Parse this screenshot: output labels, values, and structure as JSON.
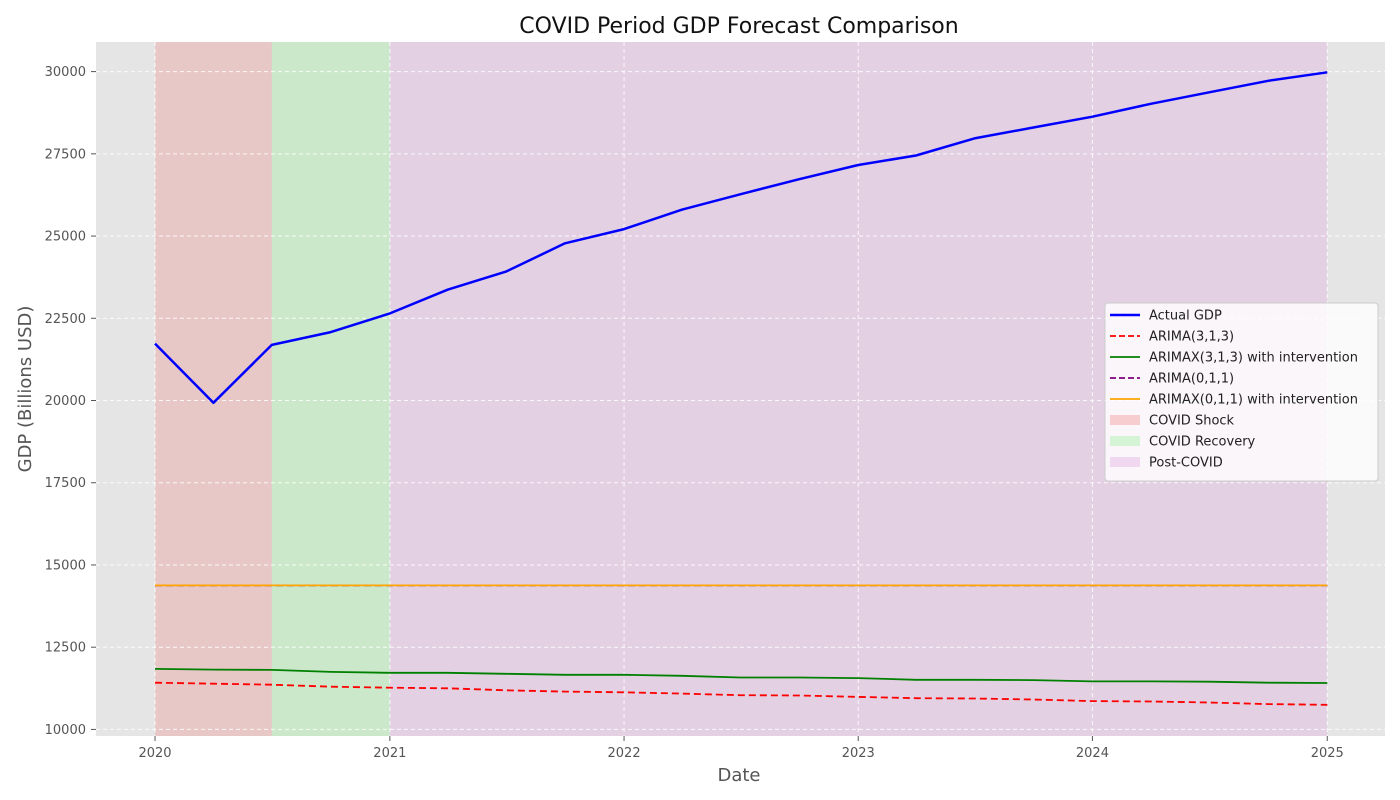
{
  "chart_data": {
    "type": "line",
    "title": "COVID Period GDP Forecast Comparison",
    "xlabel": "Date",
    "ylabel": "GDP (Billions USD)",
    "x": [
      "2020-01",
      "2020-04",
      "2020-07",
      "2020-10",
      "2021-01",
      "2021-04",
      "2021-07",
      "2021-10",
      "2022-01",
      "2022-04",
      "2022-07",
      "2022-10",
      "2023-01",
      "2023-04",
      "2023-07",
      "2023-10",
      "2024-01",
      "2024-04",
      "2024-07",
      "2024-10",
      "2025-01"
    ],
    "xlim": [
      "2019-10-01",
      "2025-04-01"
    ],
    "ylim": [
      9800,
      30900
    ],
    "x_ticks": [
      {
        "date": "2020-01-01",
        "label": "2020"
      },
      {
        "date": "2021-01-01",
        "label": "2021"
      },
      {
        "date": "2022-01-01",
        "label": "2022"
      },
      {
        "date": "2023-01-01",
        "label": "2023"
      },
      {
        "date": "2024-01-01",
        "label": "2024"
      },
      {
        "date": "2025-01-01",
        "label": "2025"
      }
    ],
    "y_ticks": [
      10000,
      12500,
      15000,
      17500,
      20000,
      22500,
      25000,
      27500,
      30000
    ],
    "grid": true,
    "legend_position": "center-right",
    "series": [
      {
        "name": "Actual GDP",
        "color": "#0000ff",
        "style": "solid",
        "values": [
          21730,
          19930,
          21690,
          22080,
          22650,
          23370,
          23920,
          24780,
          25210,
          25800,
          26270,
          26730,
          27160,
          27450,
          27970,
          28300,
          28630,
          29020,
          29370,
          29720,
          29980
        ]
      },
      {
        "name": "ARIMA(3,1,3)",
        "color": "#ff0000",
        "style": "dashed",
        "values": [
          11420,
          11390,
          11360,
          11300,
          11270,
          11250,
          11190,
          11150,
          11130,
          11090,
          11040,
          11030,
          10990,
          10950,
          10940,
          10910,
          10860,
          10850,
          10820,
          10770,
          10750
        ]
      },
      {
        "name": "ARIMAX(3,1,3) with intervention",
        "color": "#008000",
        "style": "solid",
        "values": [
          11840,
          11820,
          11810,
          11750,
          11720,
          11720,
          11690,
          11660,
          11660,
          11630,
          11580,
          11580,
          11560,
          11510,
          11510,
          11500,
          11460,
          11460,
          11450,
          11420,
          11410
        ]
      },
      {
        "name": "ARIMA(0,1,1)",
        "color": "#800080",
        "style": "dashed",
        "values": [
          14380,
          14380,
          14380,
          14380,
          14380,
          14380,
          14380,
          14380,
          14380,
          14380,
          14380,
          14380,
          14380,
          14380,
          14380,
          14380,
          14380,
          14380,
          14380,
          14380,
          14380
        ]
      },
      {
        "name": "ARIMAX(0,1,1) with intervention",
        "color": "#ffa500",
        "style": "solid",
        "values": [
          14380,
          14380,
          14380,
          14380,
          14380,
          14380,
          14380,
          14380,
          14380,
          14380,
          14380,
          14380,
          14380,
          14380,
          14380,
          14380,
          14380,
          14380,
          14380,
          14380,
          14380
        ]
      }
    ],
    "regions": [
      {
        "name": "COVID Shock",
        "start": "2020-01-01",
        "end": "2020-07-01",
        "color": "#f08080"
      },
      {
        "name": "COVID Recovery",
        "start": "2020-07-01",
        "end": "2021-01-01",
        "color": "#90ee90"
      },
      {
        "name": "Post-COVID",
        "start": "2021-01-01",
        "end": "2025-01-01",
        "color": "#dda0dd"
      }
    ]
  }
}
